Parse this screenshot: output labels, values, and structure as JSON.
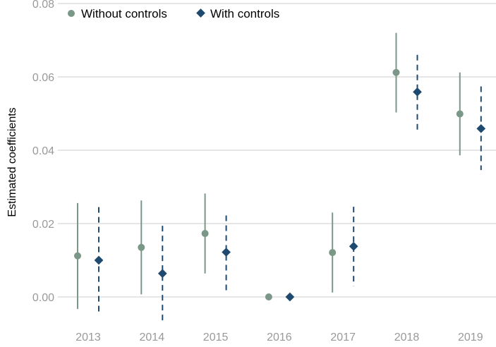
{
  "chart_data": {
    "type": "scatter",
    "xlabel": "",
    "ylabel": "Estimated coefficients",
    "categories": [
      "2013",
      "2014",
      "2015",
      "2016",
      "2017",
      "2018",
      "2019"
    ],
    "ylim": [
      -0.007,
      0.08
    ],
    "yticks": [
      "0.00",
      "0.02",
      "0.04",
      "0.06",
      "0.08"
    ],
    "grid": "horizontal",
    "legend_position": "top-left",
    "colors": {
      "without": "#7a9787",
      "with": "#1f4a70",
      "grid": "#cccccc",
      "tick": "#999999"
    },
    "series": [
      {
        "name": "Without controls",
        "marker": "circle",
        "line": "solid",
        "values": [
          0.0112,
          0.0135,
          0.0173,
          0.0,
          0.0121,
          0.0612,
          0.0499
        ],
        "lower": [
          -0.0033,
          0.0007,
          0.0064,
          0.0,
          0.0012,
          0.0503,
          0.0386
        ],
        "upper": [
          0.0256,
          0.0263,
          0.0282,
          0.0,
          0.023,
          0.072,
          0.0612
        ]
      },
      {
        "name": "With controls",
        "marker": "diamond",
        "line": "dashed",
        "values": [
          0.01,
          0.0064,
          0.0122,
          0.0,
          0.0138,
          0.0559,
          0.0459
        ],
        "lower": [
          -0.0045,
          -0.0066,
          0.0013,
          0.0,
          0.003,
          0.045,
          0.0346
        ],
        "upper": [
          0.0245,
          0.0194,
          0.0222,
          0.0,
          0.0246,
          0.066,
          0.0574
        ]
      }
    ]
  }
}
